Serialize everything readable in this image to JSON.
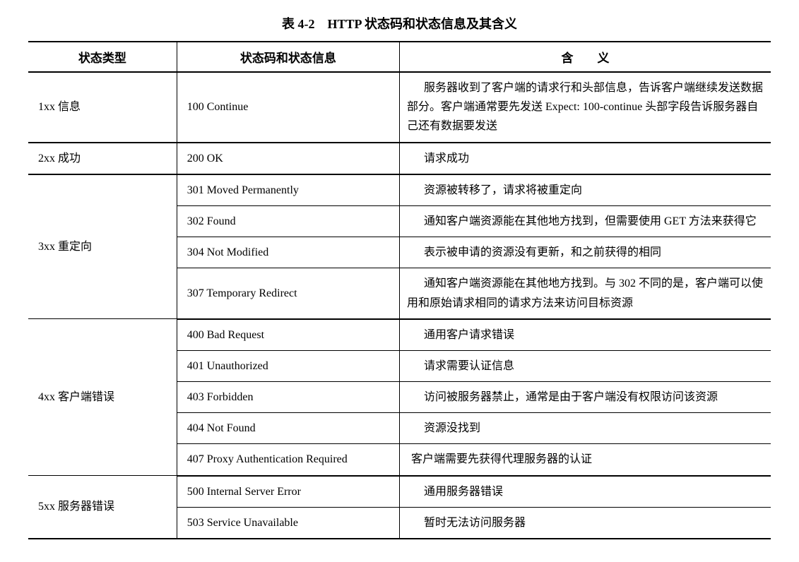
{
  "caption": "表 4-2　HTTP 状态码和状态信息及其含义",
  "headers": {
    "col1": "状态类型",
    "col2": "状态码和状态信息",
    "col3": "含义"
  },
  "groups": [
    {
      "category": "1xx 信息",
      "rows": [
        {
          "code": "100 Continue",
          "meaning": "服务器收到了客户端的请求行和头部信息，告诉客户端继续发送数据部分。客户端通常要先发送 Expect: 100-continue 头部字段告诉服务器自己还有数据要发送"
        }
      ]
    },
    {
      "category": "2xx 成功",
      "rows": [
        {
          "code": "200 OK",
          "meaning": "请求成功"
        }
      ]
    },
    {
      "category": "3xx 重定向",
      "rows": [
        {
          "code": "301 Moved Permanently",
          "meaning": "资源被转移了，请求将被重定向"
        },
        {
          "code": "302 Found",
          "meaning": "通知客户端资源能在其他地方找到，但需要使用 GET 方法来获得它"
        },
        {
          "code": "304 Not Modified",
          "meaning": "表示被申请的资源没有更新，和之前获得的相同"
        },
        {
          "code": "307 Temporary Redirect",
          "meaning": "通知客户端资源能在其他地方找到。与 302 不同的是，客户端可以使用和原始请求相同的请求方法来访问目标资源"
        }
      ]
    },
    {
      "category": "4xx 客户端错误",
      "rows": [
        {
          "code": "400 Bad Request",
          "meaning": "通用客户请求错误"
        },
        {
          "code": "401 Unauthorized",
          "meaning": "请求需要认证信息"
        },
        {
          "code": "403 Forbidden",
          "meaning": "访问被服务器禁止，通常是由于客户端没有权限访问该资源"
        },
        {
          "code": "404 Not Found",
          "meaning": "资源没找到"
        },
        {
          "code": "407 Proxy Authentication Required",
          "meaning": "客户端需要先获得代理服务器的认证"
        }
      ]
    },
    {
      "category": "5xx 服务器错误",
      "rows": [
        {
          "code": "500 Internal Server Error",
          "meaning": "通用服务器错误"
        },
        {
          "code": "503 Service Unavailable",
          "meaning": "暂时无法访问服务器"
        }
      ]
    }
  ],
  "style": {
    "background_color": "#ffffff",
    "text_color": "#000000",
    "border_color": "#000000",
    "caption_fontsize": 18,
    "header_fontsize": 17,
    "body_fontsize": 16,
    "outer_border_width": 2,
    "inner_border_width": 1,
    "col_widths_pct": [
      20,
      30,
      50
    ],
    "line_height": 1.7
  }
}
